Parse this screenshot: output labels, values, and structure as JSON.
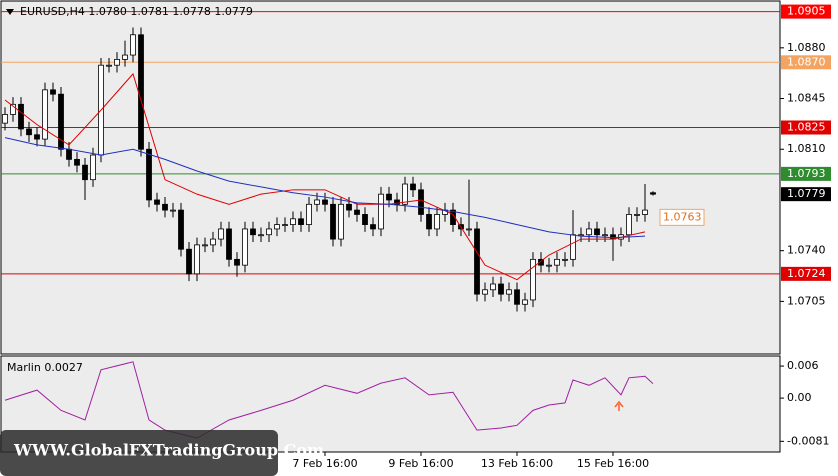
{
  "chart_data": [
    {
      "type": "candlestick",
      "title": "EURUSD,H4  1.0780 1.0781 1.0778 1.0779",
      "watermark": "WWW.GlobalFXTradingGroup.Com",
      "categories": [
        null,
        null,
        null,
        null,
        null,
        null,
        null,
        null,
        null,
        null,
        null,
        null,
        null,
        null,
        null,
        null,
        null,
        null,
        null,
        null,
        null,
        null,
        null,
        null,
        null,
        null,
        null,
        null,
        null,
        null,
        null,
        null,
        null,
        null,
        null,
        null,
        null,
        null,
        null,
        null,
        "7 Feb 16:00",
        null,
        null,
        null,
        null,
        null,
        null,
        null,
        null,
        null,
        null,
        null,
        "9 Feb 16:00",
        null,
        null,
        null,
        null,
        null,
        null,
        null,
        null,
        null,
        null,
        null,
        "13 Feb 16:00",
        null,
        null,
        null,
        null,
        null,
        null,
        null,
        null,
        null,
        null,
        null,
        "15 Feb 16:00",
        null,
        null,
        null,
        null,
        null
      ],
      "open": [
        1.0828,
        1.0834,
        1.0841,
        1.0824,
        1.082,
        1.0817,
        1.0851,
        1.0848,
        1.081,
        1.0803,
        1.0799,
        1.0789,
        1.0806,
        1.0868,
        1.0868,
        1.0872,
        1.0875,
        1.0889,
        1.081,
        1.0775,
        1.0772,
        1.0768,
        1.0768,
        1.0741,
        1.0724,
        1.0744,
        1.0744,
        1.0748,
        1.0755,
        1.0734,
        1.073,
        1.0755,
        1.0751,
        1.0751,
        1.0755,
        1.0758,
        1.0758,
        1.0762,
        1.0758,
        1.0772,
        1.0775,
        1.0772,
        1.0748,
        1.0772,
        1.0768,
        1.0765,
        1.0758,
        1.0755,
        1.0779,
        1.0775,
        1.0772,
        1.0786,
        1.0782,
        1.0765,
        1.0755,
        1.0765,
        1.0768,
        1.0758,
        1.0755,
        1.0755,
        1.071,
        1.0713,
        1.0717,
        1.071,
        1.0713,
        1.0703,
        1.0706,
        1.0734,
        1.073,
        1.073,
        1.0734,
        1.0734,
        1.0751,
        1.0751,
        1.0755,
        1.0751,
        1.0751,
        1.0748,
        1.0751,
        1.0765,
        1.0765,
        1.078
      ],
      "high": [
        1.0839,
        1.0846,
        1.0846,
        1.0829,
        1.0825,
        1.0856,
        1.0856,
        1.0853,
        1.0815,
        1.0808,
        1.0804,
        1.0811,
        1.0873,
        1.0873,
        1.0877,
        1.0885,
        1.0894,
        1.0894,
        1.0815,
        1.078,
        1.0777,
        1.0773,
        1.0773,
        1.0746,
        1.0749,
        1.0749,
        1.0753,
        1.076,
        1.076,
        1.0739,
        1.076,
        1.076,
        1.0756,
        1.076,
        1.0763,
        1.0763,
        1.0767,
        1.0767,
        1.0777,
        1.078,
        1.078,
        1.0777,
        1.0777,
        1.0777,
        1.0773,
        1.077,
        1.0763,
        1.0784,
        1.0784,
        1.078,
        1.0791,
        1.0791,
        1.0787,
        1.077,
        1.077,
        1.0773,
        1.0773,
        1.0763,
        1.0789,
        1.076,
        1.0718,
        1.0722,
        1.0722,
        1.0718,
        1.0718,
        1.0711,
        1.0739,
        1.0739,
        1.0735,
        1.0739,
        1.0739,
        1.0768,
        1.0756,
        1.076,
        1.076,
        1.0756,
        1.0756,
        1.0756,
        1.077,
        1.077,
        1.0786,
        1.0781
      ],
      "low": [
        1.0823,
        1.0829,
        1.0819,
        1.0815,
        1.0812,
        1.0812,
        1.0843,
        1.0805,
        1.0798,
        1.0794,
        1.0775,
        1.0784,
        1.0801,
        1.0863,
        1.0863,
        1.0867,
        1.087,
        1.0805,
        1.077,
        1.0767,
        1.0763,
        1.0763,
        1.0736,
        1.0719,
        1.0719,
        1.0739,
        1.0739,
        1.0743,
        1.0729,
        1.0722,
        1.0725,
        1.0746,
        1.0746,
        1.0746,
        1.075,
        1.0753,
        1.0753,
        1.0753,
        1.0753,
        1.0767,
        1.0767,
        1.0743,
        1.0743,
        1.0763,
        1.076,
        1.0753,
        1.075,
        1.075,
        1.077,
        1.0767,
        1.0767,
        1.0777,
        1.076,
        1.075,
        1.075,
        1.076,
        1.0753,
        1.075,
        1.075,
        1.0705,
        1.0705,
        1.0708,
        1.0705,
        1.0705,
        1.0698,
        1.0698,
        1.0701,
        1.0725,
        1.0725,
        1.0725,
        1.0729,
        1.0729,
        1.0746,
        1.0746,
        1.0746,
        1.0746,
        1.0733,
        1.0743,
        1.0746,
        1.076,
        1.076,
        1.0778
      ],
      "close": [
        1.0834,
        1.0841,
        1.0824,
        1.082,
        1.0817,
        1.0851,
        1.0848,
        1.081,
        1.0803,
        1.0799,
        1.0789,
        1.0806,
        1.0868,
        1.0868,
        1.0872,
        1.0875,
        1.0889,
        1.081,
        1.0775,
        1.0772,
        1.0768,
        1.0768,
        1.0741,
        1.0724,
        1.0744,
        1.0744,
        1.0748,
        1.0755,
        1.0734,
        1.073,
        1.0755,
        1.0751,
        1.0751,
        1.0755,
        1.0758,
        1.0758,
        1.0762,
        1.0758,
        1.0772,
        1.0775,
        1.0772,
        1.0748,
        1.0772,
        1.0768,
        1.0765,
        1.0758,
        1.0755,
        1.0779,
        1.0775,
        1.0772,
        1.0786,
        1.0782,
        1.0765,
        1.0755,
        1.0765,
        1.0768,
        1.0758,
        1.0755,
        1.0755,
        1.071,
        1.0713,
        1.0717,
        1.071,
        1.0713,
        1.0703,
        1.0706,
        1.0734,
        1.073,
        1.073,
        1.0734,
        1.0734,
        1.0751,
        1.0751,
        1.0755,
        1.0751,
        1.0751,
        1.0748,
        1.0751,
        1.0765,
        1.0765,
        1.0768,
        1.0779
      ],
      "up_color": "#ffffff",
      "down_color": "#000000",
      "outline_color": "#000000",
      "ylim": [
        1.0668,
        1.0913
      ],
      "yticks": [
        {
          "value": 1.088,
          "label": "1.0880"
        },
        1.0845,
        {
          "value": 1.081,
          "label": "1.0810"
        },
        {
          "value": 1.074,
          "label": "1.0740"
        },
        1.0705
      ],
      "levels": [
        {
          "value": 1.0905,
          "color": "#ff0000"
        },
        {
          "value": 1.087,
          "label": "1.0870",
          "color": "#f4a460"
        },
        {
          "value": 1.0825,
          "color": "#e00000"
        },
        {
          "value": 1.0793,
          "color": "#2e8b2e"
        },
        {
          "value": 1.0724,
          "color": "#e00000"
        }
      ],
      "current_price": 1.0779,
      "ma_label": 1.0763,
      "series": [
        {
          "color": "#e00000",
          "x": [
            0,
            4,
            8,
            12,
            16,
            20,
            24,
            28,
            32,
            36,
            40,
            44,
            48,
            52,
            56,
            60,
            64,
            68,
            72,
            76,
            80
          ],
          "values": [
            1.0844,
            1.0827,
            1.0813,
            1.0837,
            1.0862,
            1.0789,
            1.0779,
            1.0772,
            1.0779,
            1.0782,
            1.0782,
            1.0772,
            1.0772,
            1.0775,
            1.0765,
            1.073,
            1.072,
            1.0737,
            1.0748,
            1.0748,
            1.0753
          ]
        },
        {
          "color": "#1f2fbf",
          "x": [
            0,
            4,
            8,
            12,
            16,
            20,
            24,
            28,
            32,
            36,
            40,
            44,
            48,
            52,
            56,
            60,
            64,
            68,
            72,
            76,
            80
          ],
          "values": [
            1.0818,
            1.0813,
            1.081,
            1.0806,
            1.081,
            1.0803,
            1.0795,
            1.0788,
            1.0784,
            1.078,
            1.0777,
            1.0773,
            1.0772,
            1.077,
            1.0767,
            1.0763,
            1.0758,
            1.0753,
            1.075,
            1.0749,
            1.075
          ]
        }
      ]
    },
    {
      "type": "line",
      "title": "Marlin 0.0027",
      "color": "#a020a0",
      "x": [
        0,
        4,
        7,
        10,
        12,
        16,
        18,
        20,
        24,
        28,
        32,
        36,
        40,
        44,
        47,
        50,
        53,
        56,
        59,
        62,
        64,
        66,
        68,
        70,
        71,
        73,
        75,
        77,
        78,
        80,
        81
      ],
      "values": [
        -0.0004,
        0.0015,
        -0.0023,
        -0.0041,
        0.0053,
        0.0068,
        -0.0041,
        -0.006,
        -0.0075,
        -0.0041,
        -0.0023,
        -0.0004,
        0.0024,
        0.0009,
        0.0028,
        0.0038,
        0.0006,
        0.0011,
        -0.006,
        -0.0056,
        -0.0051,
        -0.0023,
        -0.0013,
        -0.0009,
        0.0034,
        0.0024,
        0.0038,
        0.0006,
        0.0038,
        0.0041,
        0.0027
      ],
      "ylim": [
        -0.0101,
        0.0077
      ],
      "yticks": [
        0.006,
        {
          "value": 0,
          "label": "0.00"
        },
        -0.0081
      ]
    }
  ]
}
